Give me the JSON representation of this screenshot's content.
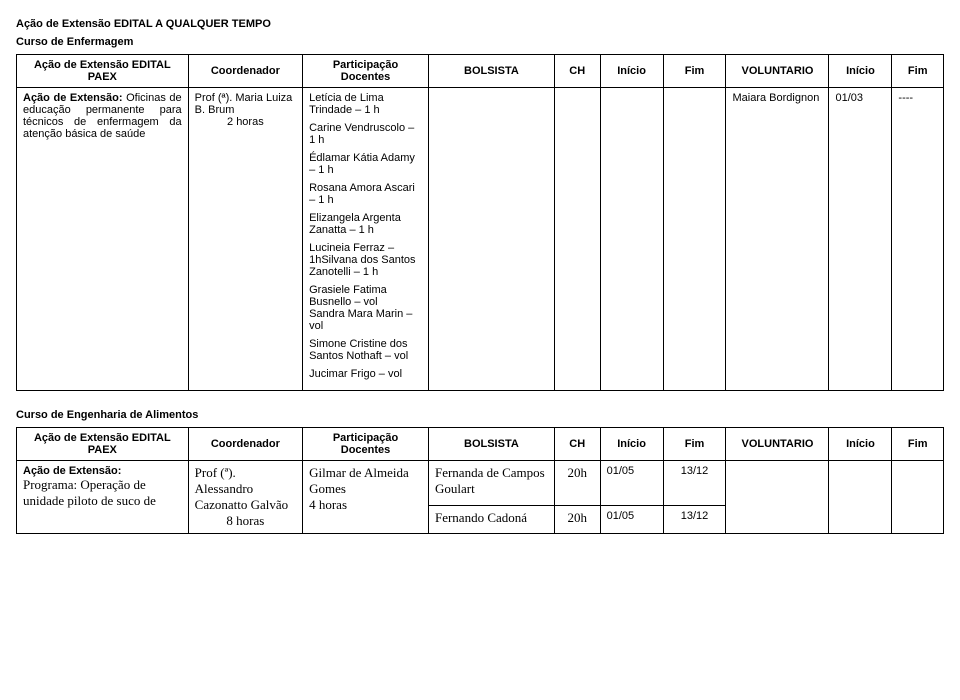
{
  "headings": {
    "main": "Ação de Extensão EDITAL A QUALQUER TEMPO",
    "curso1": "Curso de Enfermagem",
    "curso2": "Curso de Engenharia de Alimentos"
  },
  "table1": {
    "headers": {
      "col1": "Ação de Extensão EDITAL PAEX",
      "col2": "Coordenador",
      "col3": "Participação Docentes",
      "col4": "BOLSISTA",
      "col5": "CH",
      "col6": "Início",
      "col7": "Fim",
      "col8": "VOLUNTARIO",
      "col9": "Início",
      "col10": "Fim"
    },
    "row1": {
      "desc_label": "Ação de Extensão:",
      "desc_body": "Oficinas de educação permanente para técnicos de enfermagem da atenção básica de saúde",
      "coord_name": "Prof (ª). Maria Luiza B. Brum",
      "coord_hours": "2 horas",
      "participacao": [
        "Letícia de Lima Trindade – 1 h",
        "Carine Vendruscolo – 1 h",
        "Édlamar Kátia Adamy – 1 h",
        "Rosana Amora Ascari – 1 h",
        "Elizangela Argenta Zanatta – 1 h",
        "Lucineia Ferraz – 1hSilvana dos Santos Zanotelli – 1 h",
        "Grasiele Fatima Busnello – vol",
        "Sandra Mara Marin – vol",
        "Simone Cristine dos Santos Nothaft – vol",
        "Jucimar Frigo – vol"
      ],
      "bolsista": "",
      "ch": "",
      "inicio": "",
      "fim": "",
      "voluntario": "Maiara Bordignon",
      "inicio2": "01/03",
      "fim2": "----"
    }
  },
  "table2": {
    "headers": {
      "col1": "Ação de Extensão EDITAL PAEX",
      "col2": "Coordenador",
      "col3": "Participação Docentes",
      "col4": "BOLSISTA",
      "col5": "CH",
      "col6": "Início",
      "col7": "Fim",
      "col8": "VOLUNTARIO",
      "col9": "Início",
      "col10": "Fim"
    },
    "row1": {
      "desc_label": "Ação de Extensão:",
      "desc_body": "Programa: Operação de unidade piloto de suco de",
      "coord_name": "Prof (ª). Alessandro Cazonatto Galvão",
      "coord_hours": "8 horas",
      "part_name": "Gilmar de Almeida Gomes",
      "part_hours": "4 horas",
      "bolsista1": "Fernanda de Campos Goulart",
      "bolsista2": "Fernando Cadoná",
      "ch1": "20h",
      "ch2": "20h",
      "inicio1": "01/05",
      "inicio2": "01/05",
      "fim1": "13/12",
      "fim2": "13/12",
      "vol": "",
      "volinicio": "",
      "volfim": ""
    }
  }
}
